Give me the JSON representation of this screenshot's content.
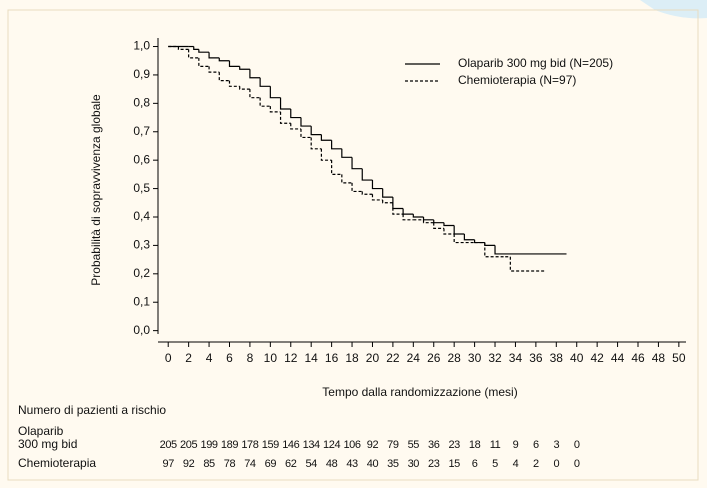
{
  "chart_data": {
    "type": "line",
    "step": true,
    "x_label": "Tempo dalla randomizzazione (mesi)",
    "y_label": "Probabilità di sopravvivenza globale",
    "xlim": [
      -1,
      50.7
    ],
    "ylim": [
      -0.04,
      1.03
    ],
    "xticks": [
      0,
      2,
      4,
      6,
      8,
      10,
      12,
      14,
      16,
      18,
      20,
      22,
      24,
      26,
      28,
      30,
      32,
      34,
      36,
      38,
      40,
      42,
      44,
      46,
      48,
      50
    ],
    "yticks": [
      {
        "value": 0,
        "label": "0,0"
      },
      {
        "value": 0.1,
        "label": "0,1"
      },
      {
        "value": 0.2,
        "label": "0,2"
      },
      {
        "value": 0.3,
        "label": "0,3"
      },
      {
        "value": 0.4,
        "label": "0,4"
      },
      {
        "value": 0.5,
        "label": "0,5"
      },
      {
        "value": 0.6,
        "label": "0,6"
      },
      {
        "value": 0.7,
        "label": "0,7"
      },
      {
        "value": 0.8,
        "label": "0,8"
      },
      {
        "value": 0.9,
        "label": "0,9"
      },
      {
        "value": 1,
        "label": "1,0"
      }
    ],
    "legend": "top-right",
    "series": [
      {
        "name": "Olaparib 300 mg bid (N=205)",
        "color": "#000000",
        "line_style": "solid",
        "x": [
          0,
          2,
          2.5,
          3,
          4,
          5,
          6,
          7,
          8,
          9,
          10,
          11,
          12,
          13,
          14,
          15,
          16,
          17,
          18,
          19,
          20,
          21,
          22,
          23,
          24,
          25,
          26,
          27,
          28,
          29,
          30,
          31,
          32,
          39
        ],
        "values": [
          1.0,
          1.0,
          0.99,
          0.98,
          0.96,
          0.95,
          0.93,
          0.92,
          0.89,
          0.86,
          0.82,
          0.78,
          0.75,
          0.72,
          0.69,
          0.67,
          0.64,
          0.61,
          0.57,
          0.53,
          0.5,
          0.47,
          0.43,
          0.41,
          0.4,
          0.39,
          0.38,
          0.37,
          0.34,
          0.32,
          0.31,
          0.3,
          0.27,
          0.27
        ]
      },
      {
        "name": "Chemioterapia (N=97)",
        "color": "#000000",
        "line_style": "dashed",
        "x": [
          0,
          1,
          2,
          3,
          4,
          5,
          6,
          7,
          8,
          9,
          10,
          11,
          12,
          13,
          14,
          15,
          16,
          17,
          18,
          19,
          20,
          21,
          22,
          23,
          24,
          25,
          26,
          27,
          28,
          30,
          31,
          33,
          33.5,
          37
        ],
        "values": [
          1.0,
          0.99,
          0.96,
          0.93,
          0.91,
          0.88,
          0.86,
          0.85,
          0.82,
          0.79,
          0.77,
          0.73,
          0.71,
          0.68,
          0.64,
          0.6,
          0.55,
          0.52,
          0.49,
          0.48,
          0.46,
          0.45,
          0.41,
          0.39,
          0.39,
          0.38,
          0.36,
          0.34,
          0.31,
          0.31,
          0.26,
          0.26,
          0.21,
          0.21
        ]
      }
    ]
  },
  "risk_table": {
    "title": "Numero di pazienti a rischio",
    "rows": [
      {
        "label": [
          "Olaparib",
          "300 mg bid"
        ],
        "counts": [
          "205",
          "205",
          "199",
          "189",
          "178",
          "159",
          "146",
          "134",
          "124",
          "106",
          "92",
          "79",
          "55",
          "36",
          "23",
          "18",
          "11",
          "9",
          "6",
          "3",
          "0"
        ]
      },
      {
        "label": [
          "Chemioterapia"
        ],
        "counts": [
          "97",
          "92",
          "85",
          "78",
          "74",
          "69",
          "62",
          "54",
          "48",
          "43",
          "40",
          "35",
          "30",
          "23",
          "15",
          "6",
          "5",
          "4",
          "2",
          "0",
          "0"
        ]
      }
    ]
  }
}
